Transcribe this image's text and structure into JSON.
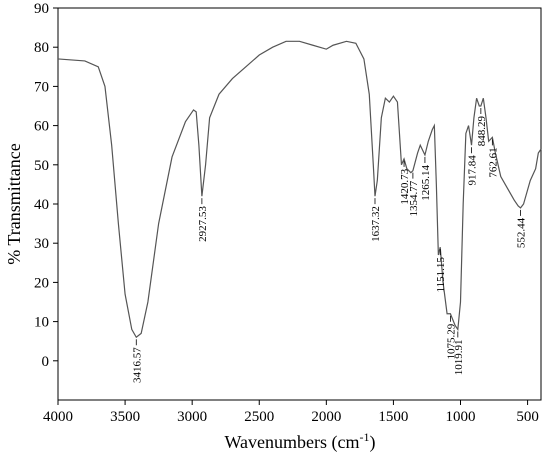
{
  "chart_data": {
    "type": "line",
    "xlabel": {
      "text": "Wavenumbers (cm",
      "superscript": "-1",
      "suffix": ")"
    },
    "ylabel": "% Transmittance",
    "xlim": [
      4000,
      400
    ],
    "xticks": [
      4000,
      3500,
      3000,
      2500,
      2000,
      1500,
      1000,
      500
    ],
    "ylim": [
      -10,
      90
    ],
    "yticks": [
      0,
      10,
      20,
      30,
      40,
      50,
      60,
      70,
      80,
      90
    ],
    "color": "#555555",
    "x": [
      4000,
      3800,
      3700,
      3650,
      3600,
      3550,
      3500,
      3450,
      3416.57,
      3380,
      3330,
      3250,
      3150,
      3050,
      2990,
      2970,
      2950,
      2927.53,
      2900,
      2870,
      2800,
      2700,
      2600,
      2500,
      2400,
      2300,
      2200,
      2100,
      2000,
      1950,
      1850,
      1780,
      1720,
      1680,
      1650,
      1637.32,
      1620,
      1590,
      1560,
      1530,
      1500,
      1470,
      1440,
      1420.73,
      1400,
      1370,
      1354.77,
      1320,
      1300,
      1265.14,
      1240,
      1210,
      1195,
      1180,
      1165,
      1151.15,
      1130,
      1100,
      1075.29,
      1040,
      1019.91,
      1000,
      980,
      960,
      940,
      917.84,
      900,
      880,
      860,
      848.29,
      830,
      810,
      790,
      762.61,
      740,
      700,
      650,
      600,
      570,
      552.44,
      530,
      480,
      440,
      420,
      400
    ],
    "values": [
      77,
      76.5,
      75,
      70,
      55,
      35,
      17,
      8,
      6,
      7,
      15,
      35,
      52,
      61,
      64,
      63.5,
      55,
      42,
      50,
      62,
      68,
      72,
      75,
      78,
      80,
      81.5,
      81.5,
      80.5,
      79.5,
      80.5,
      81.5,
      81,
      77,
      68,
      50,
      42,
      46,
      62,
      67,
      66,
      67.5,
      66,
      50,
      51.5,
      49,
      48,
      48.5,
      53,
      55,
      52.5,
      56,
      59,
      60,
      45,
      27,
      29,
      20,
      12,
      12,
      9,
      8,
      15,
      40,
      58,
      60,
      55,
      62,
      67,
      65,
      65,
      67,
      62,
      56,
      57,
      53,
      47,
      44,
      41,
      39.5,
      39,
      40,
      46,
      49,
      53,
      54
    ],
    "annotations": [
      {
        "x": 3416.57,
        "y": 6
      },
      {
        "x": 2927.53,
        "y": 42
      },
      {
        "x": 1637.32,
        "y": 42
      },
      {
        "x": 1420.73,
        "y": 51.5
      },
      {
        "x": 1354.77,
        "y": 48.5
      },
      {
        "x": 1265.14,
        "y": 52.5
      },
      {
        "x": 1151.15,
        "y": 29
      },
      {
        "x": 1075.29,
        "y": 12
      },
      {
        "x": 1019.91,
        "y": 8
      },
      {
        "x": 917.84,
        "y": 55
      },
      {
        "x": 848.29,
        "y": 65
      },
      {
        "x": 762.61,
        "y": 57
      },
      {
        "x": 552.44,
        "y": 39
      }
    ]
  }
}
